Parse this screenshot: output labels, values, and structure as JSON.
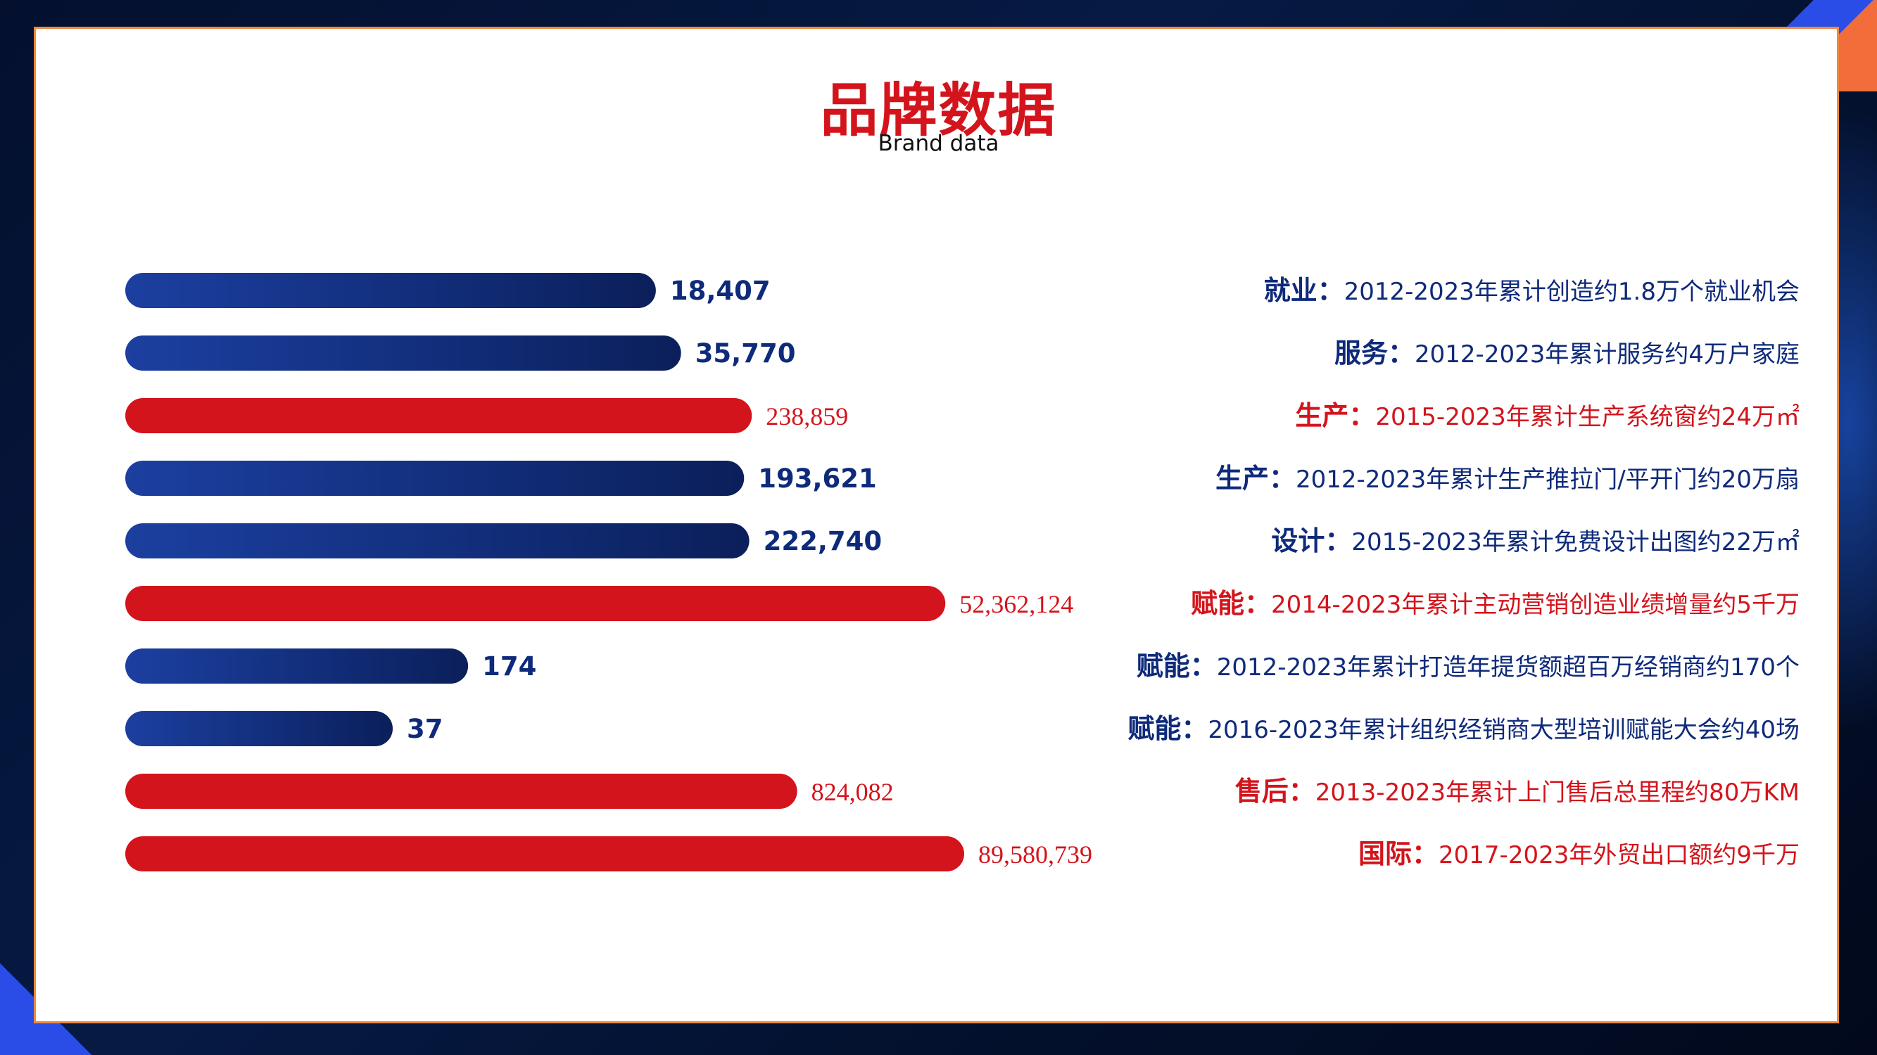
{
  "title": "品牌数据",
  "subtitle": "Brand data",
  "colors": {
    "blue": "#0e2a7a",
    "red": "#d4141c",
    "border": "#f08a3c"
  },
  "chart_data": {
    "type": "bar",
    "orientation": "horizontal",
    "categories": [
      "就业：2012-2023年累计创造约1.8万个就业机会",
      "服务：2012-2023年累计服务约4万户家庭",
      "生产：2015-2023年累计生产系统窗约24万㎡",
      "生产：2012-2023年累计生产推拉门/平开门约20万扇",
      "设计：2015-2023年累计免费设计出图约22万㎡",
      "赋能：2014-2023年累计主动营销创造业绩增量约5千万",
      "赋能：2012-2023年累计打造年提货额超百万经销商约170个",
      "赋能：2016-2023年累计组织经销商大型培训赋能大会约40场",
      "售后：2013-2023年累计上门售后总里程约80万KM",
      "国际：2017-2023年外贸出口额约9千万"
    ],
    "values": [
      18407,
      35770,
      238859,
      193621,
      222740,
      52362124,
      174,
      37,
      824082,
      89580739
    ],
    "value_labels": [
      "18,407",
      "35,770",
      "238,859",
      "193,621",
      "222,740",
      "52,362,124",
      "174",
      "37",
      "824,082",
      "89,580,739"
    ],
    "bar_colors": [
      "blue",
      "blue",
      "red",
      "blue",
      "blue",
      "red",
      "blue",
      "blue",
      "red",
      "red"
    ],
    "scale": "non-linear (bar lengths not proportional to values)",
    "grid": false,
    "legend": "none"
  },
  "descriptions": [
    {
      "label": "就业：",
      "text": "2012-2023年累计创造约1.8万个就业机会",
      "color": "blue"
    },
    {
      "label": "服务：",
      "text": "2012-2023年累计服务约4万户家庭",
      "color": "blue"
    },
    {
      "label": "生产：",
      "text": "2015-2023年累计生产系统窗约24万㎡",
      "color": "red"
    },
    {
      "label": "生产：",
      "text": "2012-2023年累计生产推拉门/平开门约20万扇",
      "color": "blue"
    },
    {
      "label": "设计：",
      "text": "2015-2023年累计免费设计出图约22万㎡",
      "color": "blue"
    },
    {
      "label": "赋能：",
      "text": "2014-2023年累计主动营销创造业绩增量约5千万",
      "color": "red"
    },
    {
      "label": "赋能：",
      "text": "2012-2023年累计打造年提货额超百万经销商约170个",
      "color": "blue"
    },
    {
      "label": "赋能：",
      "text": "2016-2023年累计组织经销商大型培训赋能大会约40场",
      "color": "blue"
    },
    {
      "label": "售后：",
      "text": "2013-2023年累计上门售后总里程约80万KM",
      "color": "red"
    },
    {
      "label": "国际：",
      "text": "2017-2023年外贸出口额约9千万",
      "color": "red"
    }
  ]
}
